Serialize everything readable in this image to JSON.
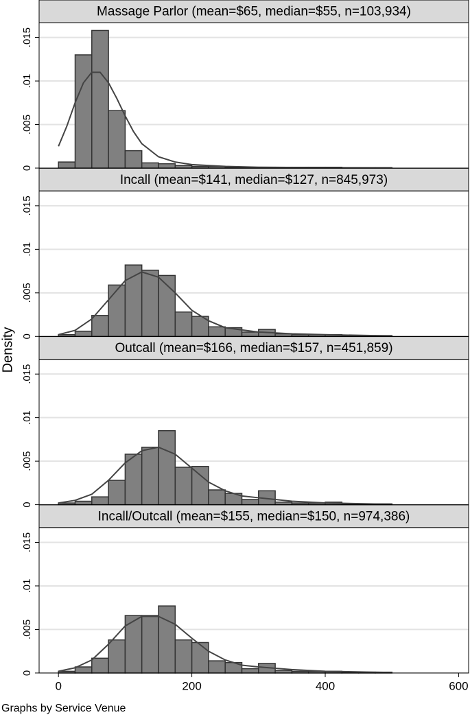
{
  "ylabel": "Density",
  "note": "Graphs by Service Venue",
  "chart_data": [
    {
      "type": "histogram",
      "title": "Massage Parlor (mean=$65, median=$55, n=103,934)",
      "bins": [
        0,
        25,
        50,
        75,
        100,
        125,
        150,
        175,
        200,
        225,
        250,
        275,
        300,
        325,
        350,
        375,
        400,
        425,
        450,
        475,
        500
      ],
      "values": [
        0.0007,
        0.013,
        0.0158,
        0.0066,
        0.002,
        0.0006,
        0.0005,
        0.0003,
        0.0002,
        0.0002,
        0.0001,
        0.0001,
        0.0001,
        0.0001,
        0.0001,
        0.0001,
        0.0001,
        5e-05,
        5e-05,
        5e-05
      ],
      "color": "#808080",
      "density": {
        "color": "#444444",
        "x": [
          0,
          12.5,
          25,
          37.5,
          50,
          62.5,
          75,
          87.5,
          100,
          112.5,
          125,
          150,
          175,
          200,
          250,
          300,
          400,
          500
        ],
        "y": [
          0.0025,
          0.0048,
          0.0075,
          0.0098,
          0.011,
          0.011,
          0.0098,
          0.008,
          0.006,
          0.0042,
          0.0028,
          0.0013,
          0.0007,
          0.0004,
          0.0002,
          0.0001,
          5e-05,
          2e-05
        ]
      },
      "xlim": [
        -29,
        615
      ],
      "ylim": [
        0,
        0.0167
      ],
      "yticks": [
        0,
        {
          "value": 0.005,
          "label": ".005"
        },
        {
          "value": 0.01,
          "label": ".01"
        },
        {
          "value": 0.015,
          "label": ".015"
        }
      ],
      "grid": true
    },
    {
      "type": "histogram",
      "title": "Incall (mean=$141, median=$127, n=845,973)",
      "bins": [
        0,
        25,
        50,
        75,
        100,
        125,
        150,
        175,
        200,
        225,
        250,
        275,
        300,
        325,
        350,
        375,
        400,
        425,
        450,
        475,
        500
      ],
      "values": [
        0.0002,
        0.0006,
        0.0024,
        0.0059,
        0.0082,
        0.0076,
        0.007,
        0.0028,
        0.0023,
        0.0011,
        0.001,
        0.0005,
        0.0008,
        0.0003,
        0.0002,
        0.0002,
        0.0002,
        0.0001,
        0.0001,
        0.0001
      ],
      "color": "#808080",
      "density": {
        "color": "#444444",
        "x": [
          0,
          25,
          50,
          75,
          100,
          125,
          150,
          175,
          200,
          225,
          250,
          300,
          350,
          400,
          500
        ],
        "y": [
          0.0002,
          0.0007,
          0.002,
          0.0042,
          0.0064,
          0.0074,
          0.0068,
          0.005,
          0.003,
          0.0018,
          0.001,
          0.0005,
          0.0003,
          0.0002,
          5e-05
        ]
      },
      "xlim": [
        -29,
        615
      ],
      "ylim": [
        0,
        0.0167
      ],
      "yticks": [
        0,
        {
          "value": 0.005,
          "label": ".005"
        },
        {
          "value": 0.01,
          "label": ".01"
        },
        {
          "value": 0.015,
          "label": ".015"
        }
      ],
      "grid": true
    },
    {
      "type": "histogram",
      "title": "Outcall (mean=$166, median=$157, n=451,859)",
      "bins": [
        0,
        25,
        50,
        75,
        100,
        125,
        150,
        175,
        200,
        225,
        250,
        275,
        300,
        325,
        350,
        375,
        400,
        425,
        450,
        475,
        500
      ],
      "values": [
        0.0002,
        0.0004,
        0.0009,
        0.0028,
        0.0058,
        0.0066,
        0.0085,
        0.0043,
        0.0044,
        0.0017,
        0.0013,
        0.0006,
        0.0016,
        0.0003,
        0.0002,
        0.0002,
        0.0003,
        0.0001,
        0.0001,
        0.0001
      ],
      "color": "#808080",
      "density": {
        "color": "#444444",
        "x": [
          0,
          25,
          50,
          75,
          100,
          125,
          150,
          175,
          200,
          225,
          250,
          275,
          300,
          350,
          400,
          500
        ],
        "y": [
          0.0002,
          0.0005,
          0.0012,
          0.0028,
          0.0048,
          0.0062,
          0.0066,
          0.0058,
          0.0042,
          0.0026,
          0.0016,
          0.001,
          0.0008,
          0.0004,
          0.0002,
          5e-05
        ]
      },
      "xlim": [
        -29,
        615
      ],
      "ylim": [
        0,
        0.0167
      ],
      "yticks": [
        0,
        {
          "value": 0.005,
          "label": ".005"
        },
        {
          "value": 0.01,
          "label": ".01"
        },
        {
          "value": 0.015,
          "label": ".015"
        }
      ],
      "grid": true
    },
    {
      "type": "histogram",
      "title": "Incall/Outcall (mean=$155, median=$150, n=974,386)",
      "bins": [
        0,
        25,
        50,
        75,
        100,
        125,
        150,
        175,
        200,
        225,
        250,
        275,
        300,
        325,
        350,
        375,
        400,
        425,
        450,
        475,
        500
      ],
      "values": [
        0.0002,
        0.0007,
        0.0017,
        0.0038,
        0.0066,
        0.0066,
        0.0077,
        0.0038,
        0.0035,
        0.0014,
        0.0012,
        0.0005,
        0.0011,
        0.0003,
        0.0002,
        0.0002,
        0.0002,
        0.0001,
        0.0001,
        0.0001
      ],
      "color": "#808080",
      "density": {
        "color": "#444444",
        "x": [
          0,
          25,
          50,
          75,
          100,
          125,
          150,
          175,
          200,
          225,
          250,
          275,
          300,
          350,
          400,
          500
        ],
        "y": [
          0.0002,
          0.0006,
          0.0015,
          0.0033,
          0.0054,
          0.0065,
          0.0065,
          0.0056,
          0.004,
          0.0025,
          0.0015,
          0.0009,
          0.0007,
          0.0004,
          0.0002,
          5e-05
        ]
      },
      "xlim": [
        -29,
        615
      ],
      "ylim": [
        0,
        0.0167
      ],
      "yticks": [
        0,
        {
          "value": 0.005,
          "label": ".005"
        },
        {
          "value": 0.01,
          "label": ".01"
        },
        {
          "value": 0.015,
          "label": ".015"
        }
      ],
      "grid": true,
      "xticks": [
        0,
        200,
        400,
        600
      ]
    }
  ]
}
